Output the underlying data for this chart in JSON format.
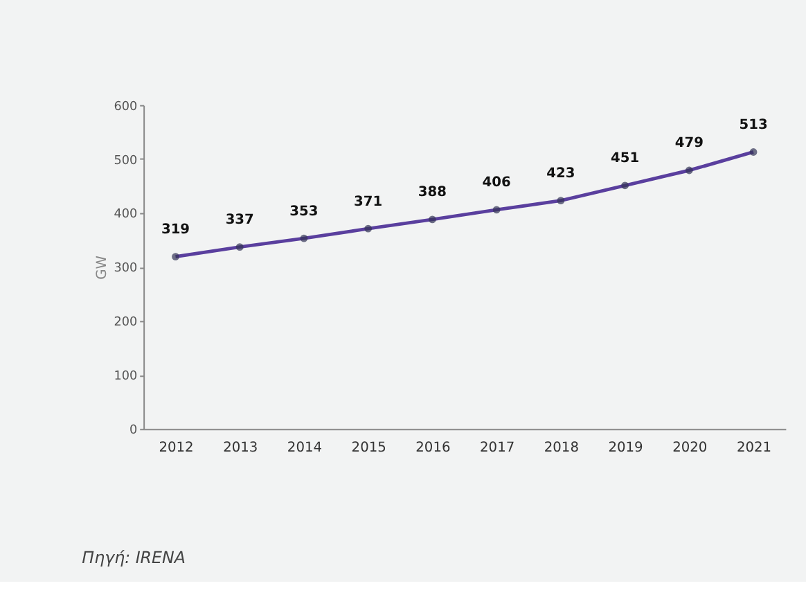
{
  "chart_data": {
    "type": "line",
    "ylabel": "GW",
    "categories": [
      "2012",
      "2013",
      "2014",
      "2015",
      "2016",
      "2017",
      "2018",
      "2019",
      "2020",
      "2021"
    ],
    "series": [
      {
        "color": "#5a3f9e",
        "values": [
          319,
          337,
          353,
          371,
          388,
          406,
          423,
          451,
          479,
          513
        ]
      }
    ],
    "ylim": [
      0,
      600
    ],
    "yticks": [
      0,
      100,
      200,
      300,
      400,
      500,
      600
    ],
    "grid": false,
    "marker": "circle",
    "line_style": "solid",
    "data_labels": true,
    "annotations": [
      "Πηγή: IRENA"
    ]
  }
}
